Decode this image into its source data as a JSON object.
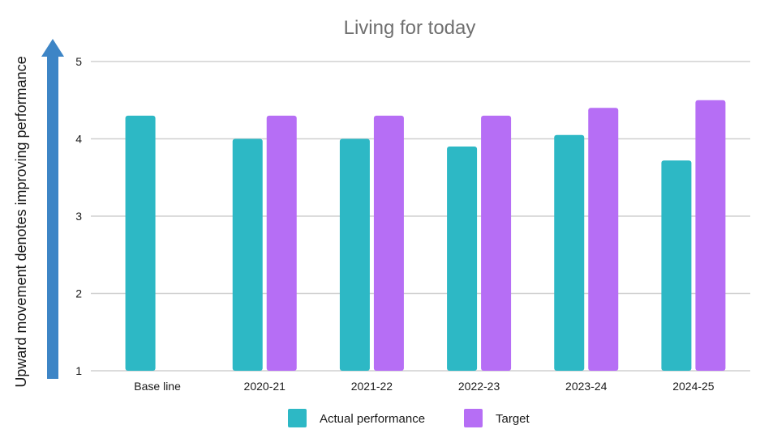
{
  "chart_data": {
    "type": "bar",
    "title": "Living for today",
    "xlabel": "",
    "ylabel": "Upward movement denotes improving performance",
    "categories": [
      "Base line",
      "2020-21",
      "2021-22",
      "2022-23",
      "2023-24",
      "2024-25"
    ],
    "series": [
      {
        "name": "Actual performance",
        "color": "#2db8c5",
        "values": [
          4.3,
          4.0,
          4.0,
          3.9,
          4.05,
          3.72
        ]
      },
      {
        "name": "Target",
        "color": "#b66ef5",
        "values": [
          null,
          4.3,
          4.3,
          4.3,
          4.4,
          4.5
        ]
      }
    ],
    "ylim": [
      1,
      5
    ],
    "yticks": [
      1,
      2,
      3,
      4,
      5
    ],
    "grid": true,
    "legend": "bottom",
    "arrow_color": "#3d85c6",
    "grid_color": "#d0d0d0"
  }
}
